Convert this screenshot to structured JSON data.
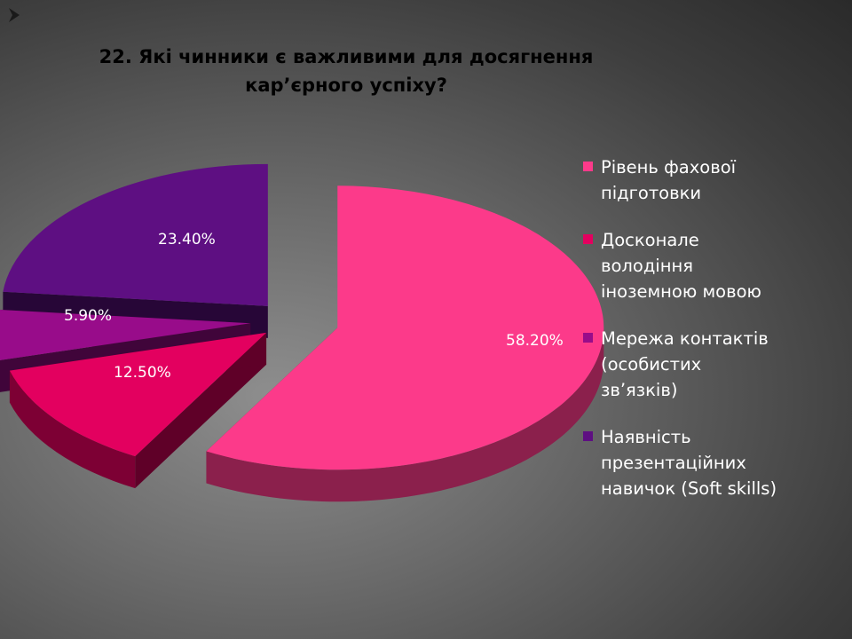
{
  "slide": {
    "title_line1": "22. Які чинники є важливими для досягнення",
    "title_line2": "кар’єрного успіху?"
  },
  "chart_data": {
    "type": "pie",
    "title": "22. Які чинники є важливими для досягнення кар’єрного успіху?",
    "categories": [
      "Рівень фахової підготовки",
      "Досконале володіння іноземною мовою",
      "Мережа контактів (особистих зв’язків)",
      "Наявність презентаційних навичок (Soft skills)"
    ],
    "values": [
      58.2,
      12.5,
      5.9,
      23.4
    ],
    "labels": [
      "58.20%",
      "12.50%",
      "5.90%",
      "23.40%"
    ],
    "colors": [
      "#fc3a8a",
      "#e3005f",
      "#980c8a",
      "#5e0f82"
    ],
    "legend": {
      "position": "right",
      "entries": [
        "Рівень фахової\nпідготовки",
        "Досконале\nволодіння\nіноземною мовою",
        "Мережа контактів\n(особистих\nзв’язків)",
        "Наявність\nпрезентаційних\nнавичок (Soft skills)"
      ]
    }
  }
}
